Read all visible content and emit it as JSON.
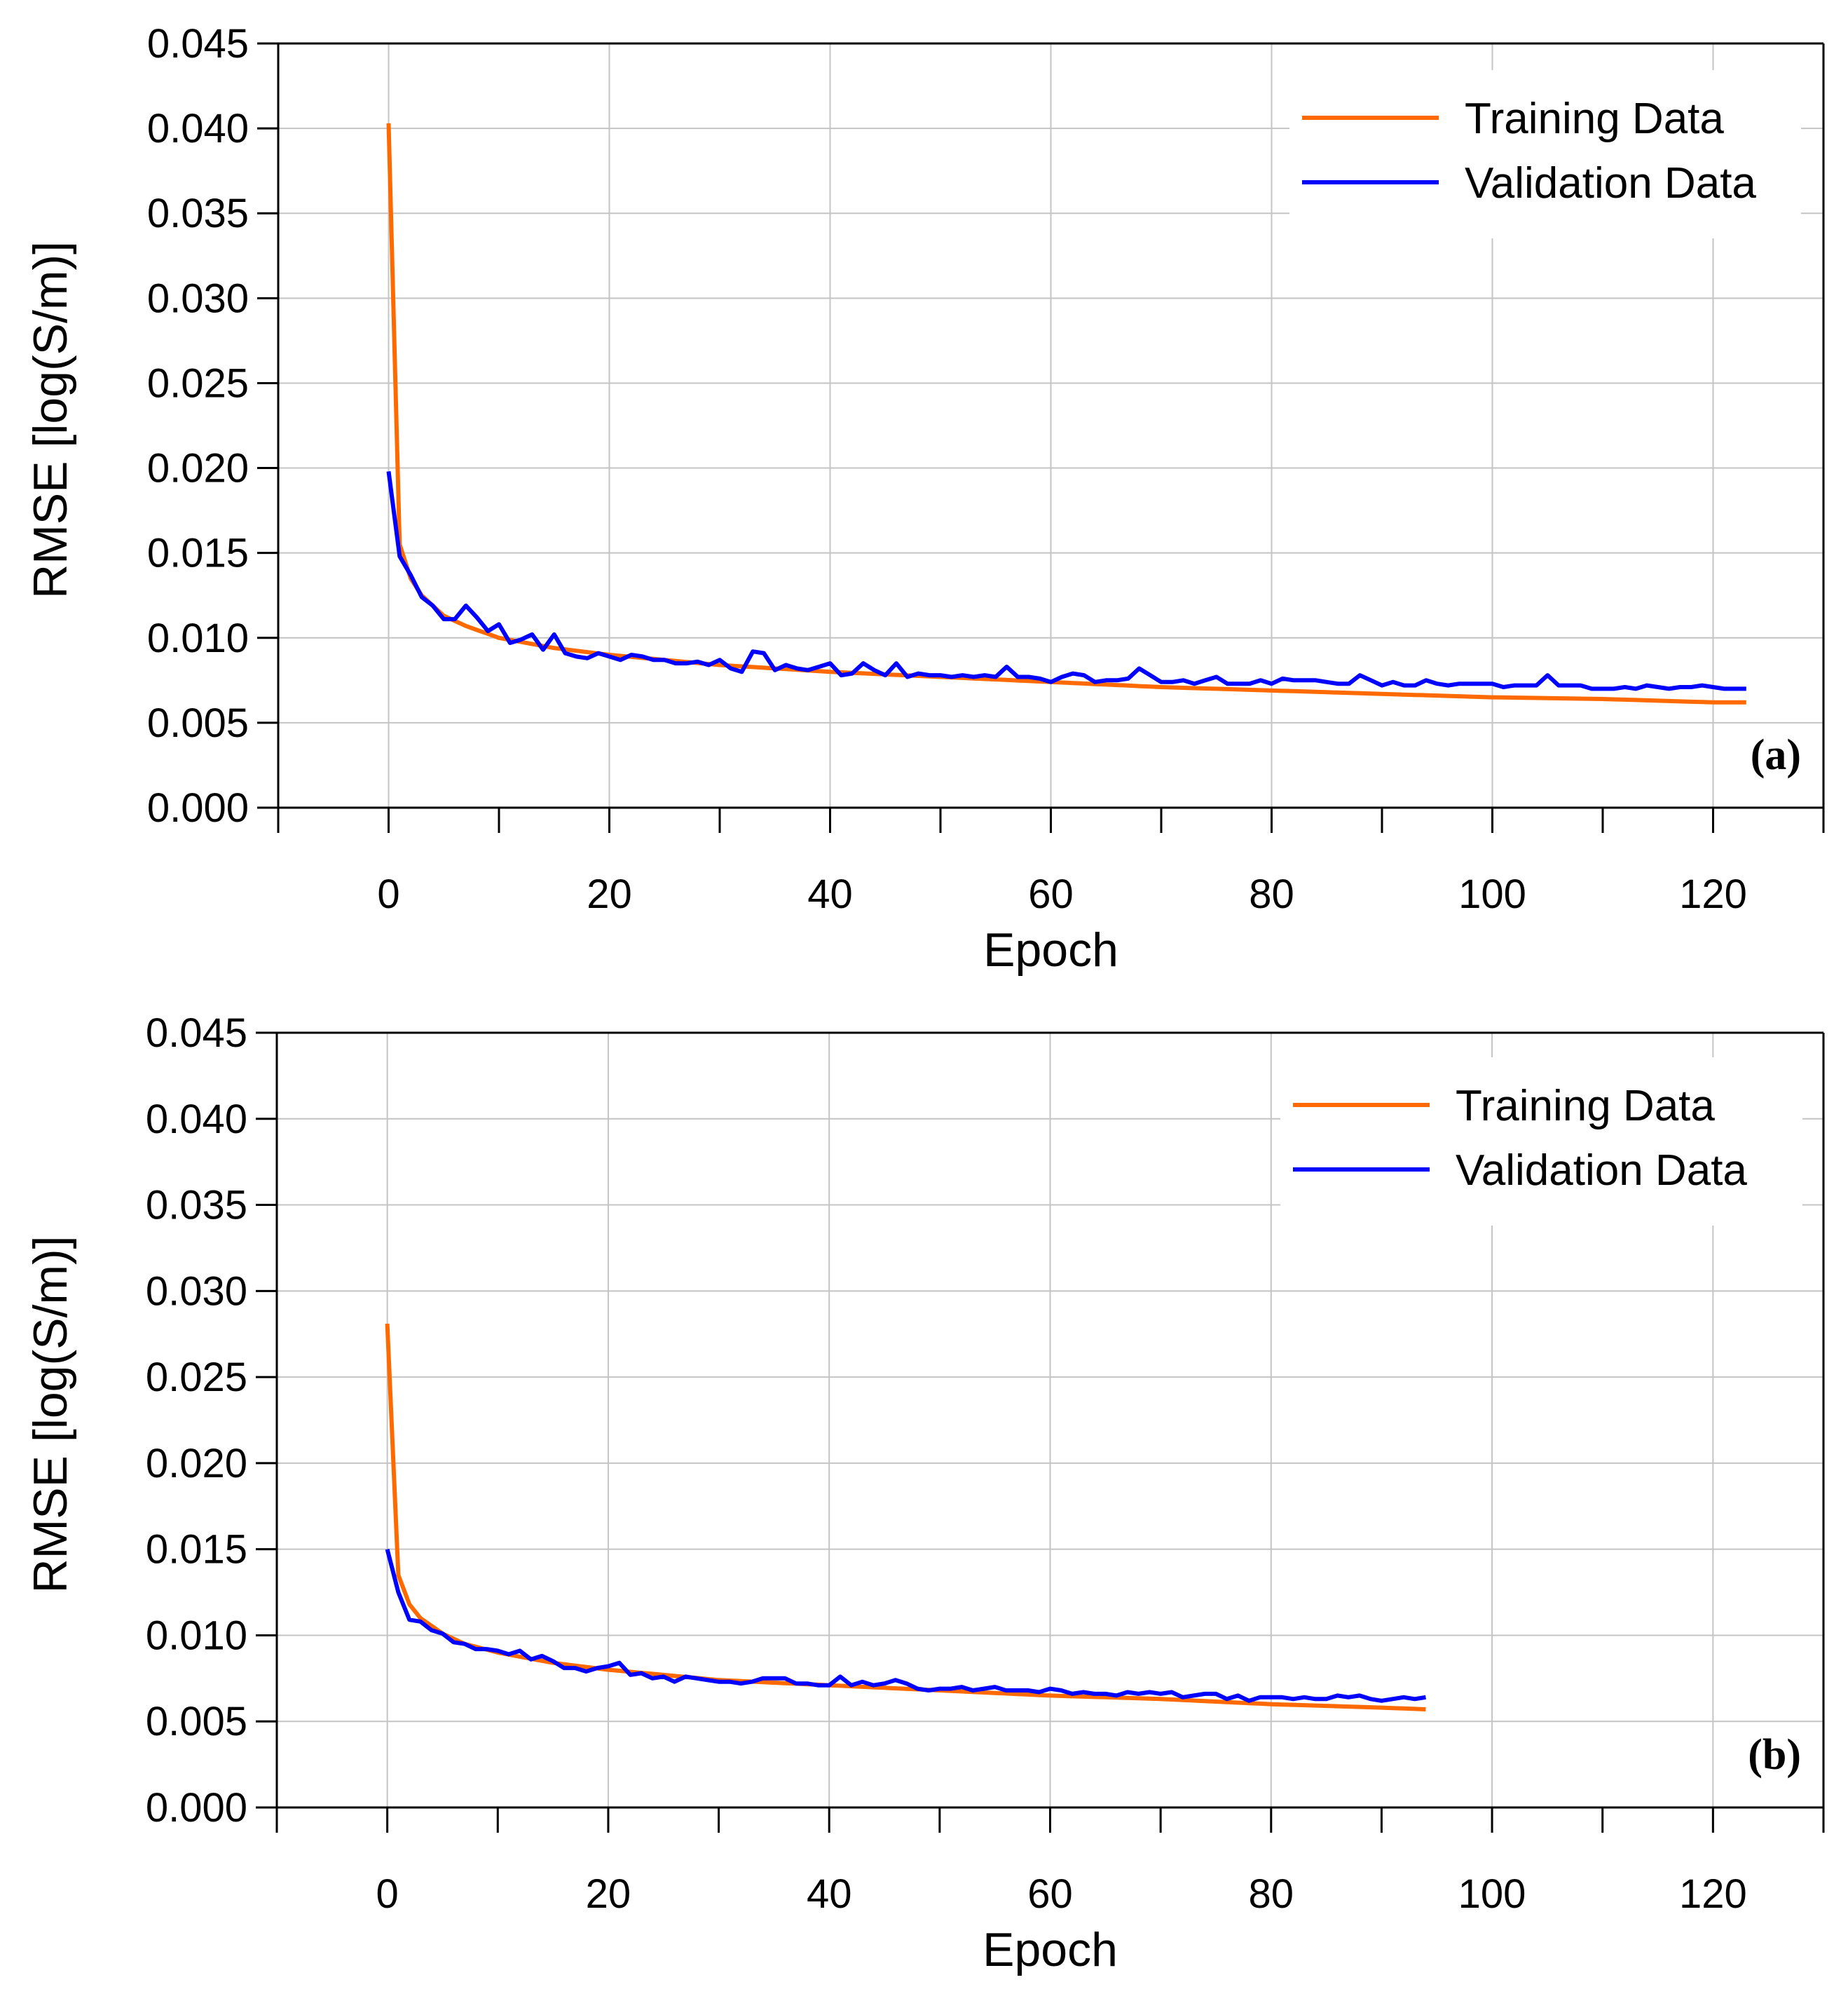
{
  "chart_data": [
    {
      "type": "line",
      "panel_label": "(a)",
      "xlabel": "Epoch",
      "ylabel": "RMSE [log(S/m)]",
      "xlim": [
        -10,
        130
      ],
      "ylim": [
        0,
        0.045
      ],
      "x_ticks": [
        "0",
        "20",
        "40",
        "60",
        "80",
        "100",
        "120"
      ],
      "y_ticks": [
        "0.000",
        "0.005",
        "0.010",
        "0.015",
        "0.020",
        "0.025",
        "0.030",
        "0.035",
        "0.040",
        "0.045"
      ],
      "legend_position": "top-right",
      "series": [
        {
          "name": "Training Data",
          "color": "#ff6a00",
          "knots": [
            [
              0,
              0.0403
            ],
            [
              1,
              0.0155
            ],
            [
              2,
              0.0135
            ],
            [
              3,
              0.0125
            ],
            [
              5,
              0.0113
            ],
            [
              7,
              0.0107
            ],
            [
              10,
              0.01
            ],
            [
              15,
              0.0094
            ],
            [
              20,
              0.009
            ],
            [
              30,
              0.0084
            ],
            [
              40,
              0.008
            ],
            [
              50,
              0.0077
            ],
            [
              60,
              0.0074
            ],
            [
              70,
              0.0071
            ],
            [
              80,
              0.0069
            ],
            [
              90,
              0.0067
            ],
            [
              100,
              0.0065
            ],
            [
              110,
              0.0064
            ],
            [
              120,
              0.0062
            ],
            [
              123,
              0.0062
            ]
          ]
        },
        {
          "name": "Validation Data",
          "color": "#0000ff",
          "values": [
            0.0198,
            0.0148,
            0.0137,
            0.0124,
            0.0119,
            0.0111,
            0.0111,
            0.0119,
            0.0112,
            0.0104,
            0.0108,
            0.0097,
            0.0099,
            0.0102,
            0.0093,
            0.0102,
            0.0091,
            0.0089,
            0.0088,
            0.0091,
            0.0089,
            0.0087,
            0.009,
            0.0089,
            0.0087,
            0.0087,
            0.0085,
            0.0085,
            0.0086,
            0.0084,
            0.0087,
            0.0082,
            0.008,
            0.0092,
            0.0091,
            0.0081,
            0.0084,
            0.0082,
            0.0081,
            0.0083,
            0.0085,
            0.0078,
            0.0079,
            0.0085,
            0.0081,
            0.0078,
            0.0085,
            0.0077,
            0.0079,
            0.0078,
            0.0078,
            0.0077,
            0.0078,
            0.0077,
            0.0078,
            0.0077,
            0.0083,
            0.0077,
            0.0077,
            0.0076,
            0.0074,
            0.0077,
            0.0079,
            0.0078,
            0.0074,
            0.0075,
            0.0075,
            0.0076,
            0.0082,
            0.0078,
            0.0074,
            0.0074,
            0.0075,
            0.0073,
            0.0075,
            0.0077,
            0.0073,
            0.0073,
            0.0073,
            0.0075,
            0.0073,
            0.0076,
            0.0075,
            0.0075,
            0.0075,
            0.0074,
            0.0073,
            0.0073,
            0.0078,
            0.0075,
            0.0072,
            0.0074,
            0.0072,
            0.0072,
            0.0075,
            0.0073,
            0.0072,
            0.0073,
            0.0073,
            0.0073,
            0.0073,
            0.0071,
            0.0072,
            0.0072,
            0.0072,
            0.0078,
            0.0072,
            0.0072,
            0.0072,
            0.007,
            0.007,
            0.007,
            0.0071,
            0.007,
            0.0072,
            0.0071,
            0.007,
            0.0071,
            0.0071,
            0.0072,
            0.0071,
            0.007,
            0.007,
            0.007
          ]
        }
      ]
    },
    {
      "type": "line",
      "panel_label": "(b)",
      "xlabel": "Epoch",
      "ylabel": "RMSE [log(S/m)]",
      "xlim": [
        -10,
        130
      ],
      "ylim": [
        0,
        0.045
      ],
      "x_ticks": [
        "0",
        "20",
        "40",
        "60",
        "80",
        "100",
        "120"
      ],
      "y_ticks": [
        "0.000",
        "0.005",
        "0.010",
        "0.015",
        "0.020",
        "0.025",
        "0.030",
        "0.035",
        "0.040",
        "0.045"
      ],
      "legend_position": "top-right",
      "series": [
        {
          "name": "Training Data",
          "color": "#ff6a00",
          "knots": [
            [
              0,
              0.0281
            ],
            [
              1,
              0.0135
            ],
            [
              2,
              0.0118
            ],
            [
              3,
              0.011
            ],
            [
              5,
              0.0101
            ],
            [
              7,
              0.0095
            ],
            [
              10,
              0.009
            ],
            [
              15,
              0.0084
            ],
            [
              20,
              0.008
            ],
            [
              30,
              0.0074
            ],
            [
              40,
              0.0071
            ],
            [
              50,
              0.0068
            ],
            [
              60,
              0.0065
            ],
            [
              70,
              0.0063
            ],
            [
              80,
              0.006
            ],
            [
              90,
              0.0058
            ],
            [
              94,
              0.0057
            ]
          ]
        },
        {
          "name": "Validation Data",
          "color": "#0000ff",
          "values": [
            0.015,
            0.0125,
            0.0109,
            0.0108,
            0.0103,
            0.0101,
            0.0096,
            0.0095,
            0.0092,
            0.0092,
            0.0091,
            0.0089,
            0.0091,
            0.0086,
            0.0088,
            0.0085,
            0.0081,
            0.0081,
            0.0079,
            0.0081,
            0.0082,
            0.0084,
            0.0077,
            0.0078,
            0.0075,
            0.0076,
            0.0073,
            0.0076,
            0.0075,
            0.0074,
            0.0073,
            0.0073,
            0.0072,
            0.0073,
            0.0075,
            0.0075,
            0.0075,
            0.0072,
            0.0072,
            0.0071,
            0.0071,
            0.0076,
            0.0071,
            0.0073,
            0.0071,
            0.0072,
            0.0074,
            0.0072,
            0.0069,
            0.0068,
            0.0069,
            0.0069,
            0.007,
            0.0068,
            0.0069,
            0.007,
            0.0068,
            0.0068,
            0.0068,
            0.0067,
            0.0069,
            0.0068,
            0.0066,
            0.0067,
            0.0066,
            0.0066,
            0.0065,
            0.0067,
            0.0066,
            0.0067,
            0.0066,
            0.0067,
            0.0064,
            0.0065,
            0.0066,
            0.0066,
            0.0063,
            0.0065,
            0.0062,
            0.0064,
            0.0064,
            0.0064,
            0.0063,
            0.0064,
            0.0063,
            0.0063,
            0.0065,
            0.0064,
            0.0065,
            0.0063,
            0.0062,
            0.0063,
            0.0064,
            0.0063,
            0.0064
          ]
        }
      ]
    }
  ]
}
